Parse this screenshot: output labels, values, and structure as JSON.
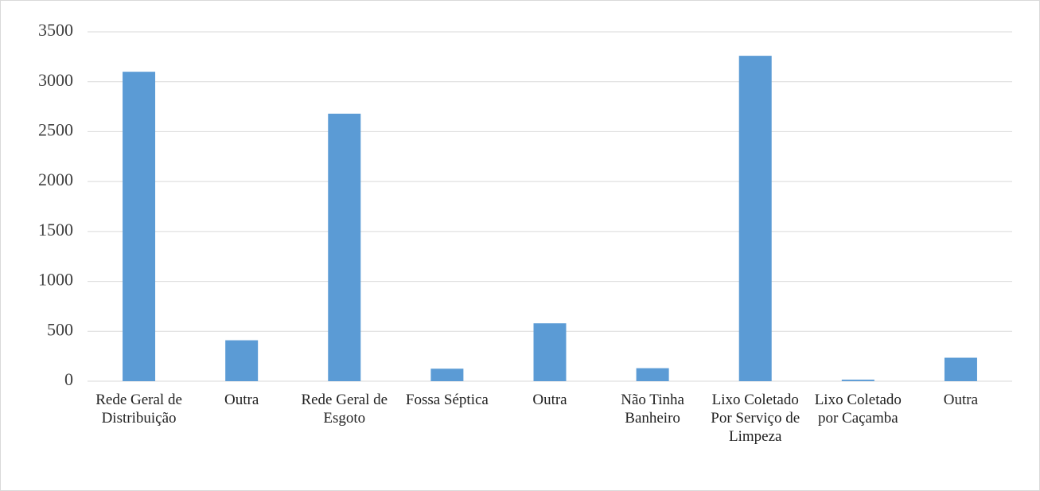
{
  "chart_data": {
    "type": "bar",
    "categories": [
      "Rede Geral de Distribuição",
      "Outra",
      "Rede Geral de Esgoto",
      "Fossa Séptica",
      "Outra",
      "Não Tinha Banheiro",
      "Lixo Coletado Por Serviço de Limpeza",
      "Lixo Coletado por Caçamba",
      "Outra"
    ],
    "values": [
      3100,
      410,
      2680,
      125,
      580,
      130,
      3260,
      15,
      235
    ],
    "color": "#5b9bd5",
    "ylim": [
      0,
      3500
    ],
    "yticks": [
      0,
      500,
      1000,
      1500,
      2000,
      2500,
      3000,
      3500
    ],
    "grid": true
  }
}
